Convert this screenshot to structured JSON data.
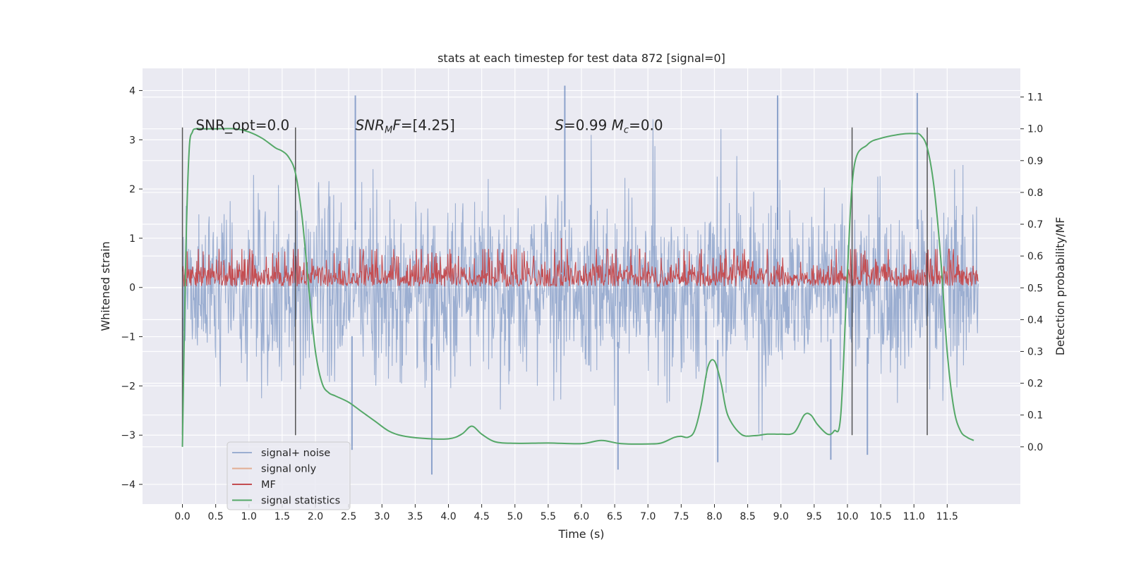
{
  "chart_data": {
    "type": "line",
    "title": "stats at each timestep for test data 872 [signal=0]",
    "xlabel": "Time (s)",
    "ylabel_left": "Whitened strain",
    "ylabel_right": "Detection probability/MF",
    "xlim": [
      -0.6,
      12.6
    ],
    "ylim_left": [
      -4.4,
      4.45
    ],
    "ylim_right": [
      -0.18,
      1.19
    ],
    "x_ticks": [
      0.0,
      0.5,
      1.0,
      1.5,
      2.0,
      2.5,
      3.0,
      3.5,
      4.0,
      4.5,
      5.0,
      5.5,
      6.0,
      6.5,
      7.0,
      7.5,
      8.0,
      8.5,
      9.0,
      9.5,
      10.0,
      10.5,
      11.0,
      11.5
    ],
    "x_tick_labels": [
      "0.0",
      "0.5",
      "1.0",
      "1.5",
      "2.0",
      "2.5",
      "3.0",
      "3.5",
      "4.0",
      "4.5",
      "5.0",
      "5.5",
      "6.0",
      "6.5",
      "7.0",
      "7.5",
      "8.0",
      "8.5",
      "9.0",
      "9.5",
      "10.0",
      "10.5",
      "11.0",
      "11.5"
    ],
    "y_ticks_left": [
      -4,
      -3,
      -2,
      -1,
      0,
      1,
      2,
      3,
      4
    ],
    "y_tick_labels_left": [
      "−4",
      "−3",
      "−2",
      "−1",
      "0",
      "1",
      "2",
      "3",
      "4"
    ],
    "y_ticks_right": [
      0.0,
      0.1,
      0.2,
      0.3,
      0.4,
      0.5,
      0.6,
      0.7,
      0.8,
      0.9,
      1.0,
      1.1
    ],
    "y_tick_labels_right": [
      "0.0",
      "0.1",
      "0.2",
      "0.3",
      "0.4",
      "0.5",
      "0.6",
      "0.7",
      "0.8",
      "0.9",
      "1.0",
      "1.1"
    ],
    "annotations": [
      {
        "text": "SNR_opt=0.0",
        "x": 0.2
      },
      {
        "text": "SNRMF=[4.25]",
        "x": 2.6,
        "rich": "snrmf"
      },
      {
        "text": "S=0.99   Mc=0.0",
        "x": 5.6,
        "rich": "smc"
      }
    ],
    "annotation_y": 3.3,
    "detection_windows": [
      [
        0.0,
        1.7
      ],
      [
        10.07,
        11.2
      ]
    ],
    "window_line_range": [
      -3.0,
      3.25
    ],
    "series": [
      {
        "name": "signal+ noise",
        "color": "#4c72b0",
        "alpha": 0.5,
        "x_range": [
          0.0,
          11.97
        ],
        "rms": 0.82,
        "extremes": [
          [
            2.6,
            3.9
          ],
          [
            5.75,
            4.1
          ],
          [
            11.05,
            3.95
          ],
          [
            8.95,
            3.9
          ],
          [
            3.75,
            -3.8
          ],
          [
            6.55,
            -3.7
          ],
          [
            8.05,
            -3.55
          ],
          [
            9.75,
            -3.5
          ],
          [
            10.3,
            -3.4
          ],
          [
            2.55,
            -3.3
          ]
        ]
      },
      {
        "name": "signal only",
        "color": "#dd8452",
        "alpha": 0.6,
        "values": []
      },
      {
        "name": "MF",
        "color": "#c44e52",
        "x_range": [
          0.0,
          11.97
        ],
        "baseline": 0.0,
        "mean": 0.3,
        "peak": 1.0,
        "peak_x": 5.7
      },
      {
        "name": "signal statistics",
        "color": "#55a868",
        "axis": "right",
        "x": [
          0.0,
          0.05,
          0.1,
          0.15,
          0.2,
          0.3,
          0.5,
          0.8,
          1.0,
          1.2,
          1.4,
          1.5,
          1.6,
          1.7,
          1.8,
          1.9,
          2.0,
          2.1,
          2.2,
          2.3,
          2.5,
          2.7,
          2.9,
          3.1,
          3.3,
          3.6,
          4.0,
          4.2,
          4.35,
          4.5,
          4.7,
          5.0,
          5.5,
          6.0,
          6.3,
          6.6,
          7.0,
          7.2,
          7.4,
          7.5,
          7.6,
          7.7,
          7.8,
          7.9,
          8.0,
          8.1,
          8.2,
          8.4,
          8.6,
          8.8,
          9.0,
          9.2,
          9.35,
          9.45,
          9.55,
          9.7,
          9.8,
          9.9,
          10.0,
          10.1,
          10.3,
          10.5,
          10.8,
          11.0,
          11.1,
          11.2,
          11.3,
          11.4,
          11.5,
          11.6,
          11.7,
          11.8,
          11.9
        ],
        "values": [
          0.0,
          0.6,
          0.93,
          0.99,
          1.0,
          1.0,
          1.0,
          1.0,
          0.99,
          0.97,
          0.94,
          0.93,
          0.91,
          0.86,
          0.72,
          0.5,
          0.3,
          0.2,
          0.17,
          0.16,
          0.14,
          0.11,
          0.08,
          0.05,
          0.035,
          0.027,
          0.025,
          0.04,
          0.065,
          0.04,
          0.016,
          0.011,
          0.012,
          0.01,
          0.02,
          0.01,
          0.009,
          0.012,
          0.03,
          0.033,
          0.03,
          0.05,
          0.13,
          0.25,
          0.27,
          0.2,
          0.1,
          0.04,
          0.035,
          0.04,
          0.04,
          0.045,
          0.1,
          0.1,
          0.07,
          0.04,
          0.05,
          0.1,
          0.55,
          0.88,
          0.95,
          0.97,
          0.983,
          0.985,
          0.98,
          0.94,
          0.82,
          0.6,
          0.3,
          0.12,
          0.05,
          0.03,
          0.02
        ]
      }
    ],
    "legend_position": "lower-left",
    "grid": true
  }
}
